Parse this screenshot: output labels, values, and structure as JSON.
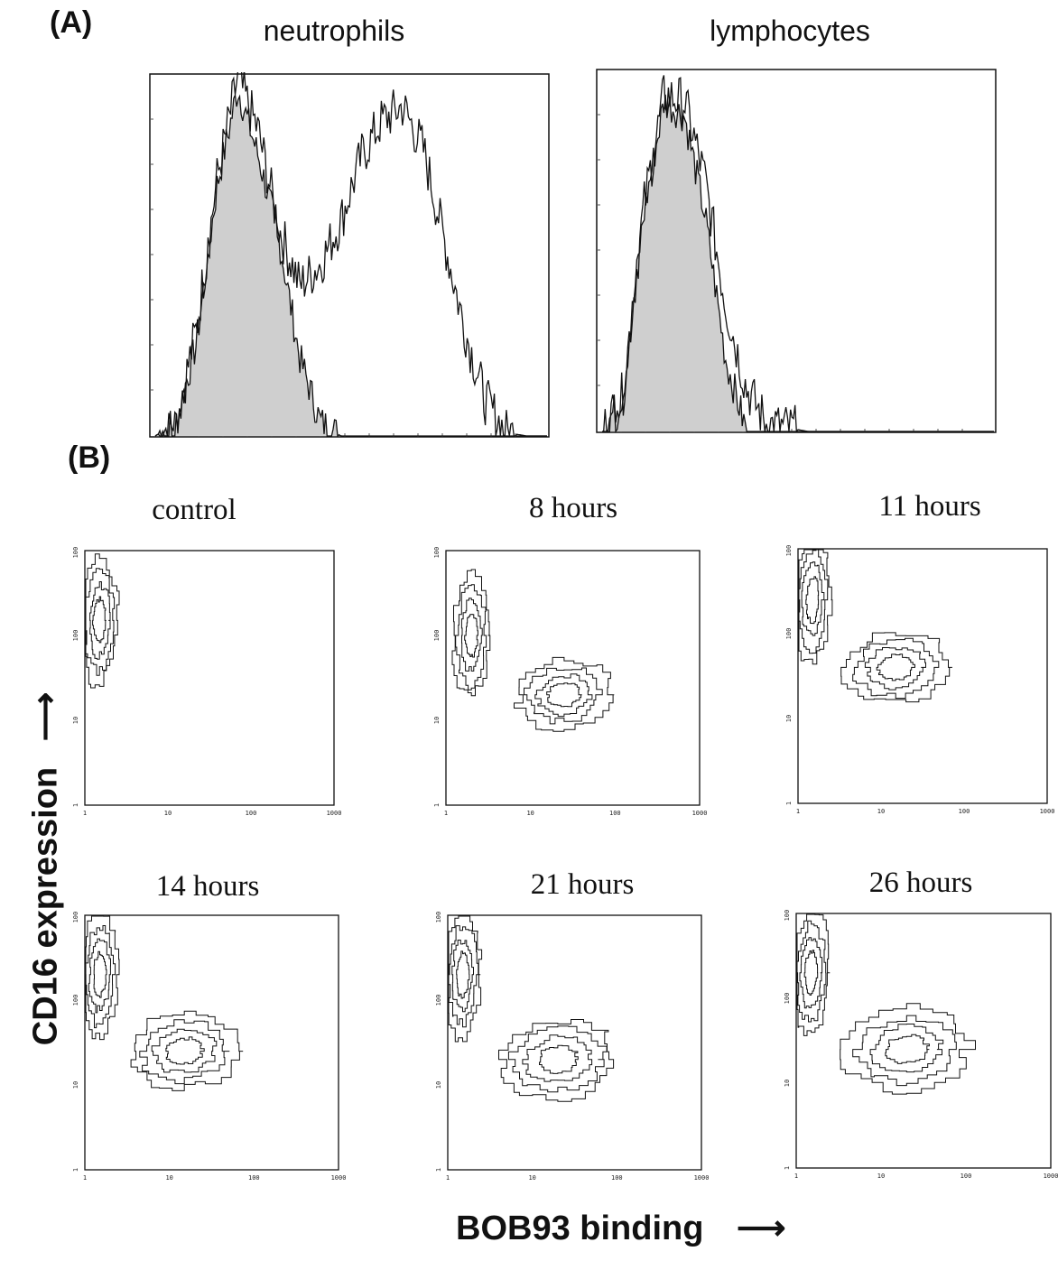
{
  "panel_a": {
    "label": "(A)",
    "neutrophils_title": "neutrophils",
    "lymphocytes_title": "lymphocytes"
  },
  "panel_b": {
    "label": "(B)",
    "y_axis_label": "CD16 expression",
    "x_axis_label": "BOB93 binding",
    "tick_labels": [
      "1",
      "10",
      "100",
      "1000"
    ],
    "plots": [
      {
        "title": "control"
      },
      {
        "title": "8 hours"
      },
      {
        "title": "11 hours"
      },
      {
        "title": "14 hours"
      },
      {
        "title": "21 hours"
      },
      {
        "title": "26 hours"
      }
    ]
  },
  "colors": {
    "fill": "#cfcfcf",
    "line": "#111111"
  },
  "chart_data": [
    {
      "type": "area",
      "title": "neutrophils",
      "xlabel": "",
      "ylabel": "",
      "series": [
        {
          "values": [
            0,
            4,
            26,
            70,
            97,
            78,
            55,
            22,
            4,
            0,
            0,
            0,
            0,
            0,
            0,
            0,
            0,
            0,
            0,
            0
          ]
        },
        {
          "values": [
            0,
            4,
            30,
            72,
            100,
            85,
            58,
            42,
            48,
            60,
            78,
            88,
            92,
            80,
            55,
            30,
            10,
            1,
            0,
            0
          ]
        }
      ]
    },
    {
      "type": "area",
      "title": "lymphocytes",
      "xlabel": "",
      "ylabel": "",
      "series": [
        {
          "values": [
            0,
            10,
            60,
            92,
            88,
            60,
            20,
            0,
            0,
            0,
            0,
            0,
            0,
            0,
            0,
            0,
            0,
            0,
            0,
            0
          ]
        },
        {
          "values": [
            0,
            10,
            62,
            94,
            92,
            70,
            35,
            12,
            2,
            1,
            0,
            0,
            0,
            0,
            0,
            0,
            0,
            0,
            0,
            0
          ]
        }
      ]
    },
    {
      "type": "scatter",
      "title": "control",
      "xlabel": "BOB93 binding",
      "ylabel": "CD16 expression",
      "xlim": [
        1,
        1000
      ],
      "ylim": [
        1,
        1000
      ],
      "log_scale": true,
      "populations": [
        {
          "x": 1.5,
          "y": 150
        }
      ]
    },
    {
      "type": "scatter",
      "title": "8 hours",
      "xlabel": "BOB93 binding",
      "ylabel": "CD16 expression",
      "xlim": [
        1,
        1000
      ],
      "ylim": [
        1,
        1000
      ],
      "log_scale": true,
      "populations": [
        {
          "x": 2,
          "y": 100
        },
        {
          "x": 25,
          "y": 20
        }
      ]
    },
    {
      "type": "scatter",
      "title": "11 hours",
      "xlabel": "BOB93 binding",
      "ylabel": "CD16 expression",
      "xlim": [
        1,
        1000
      ],
      "ylim": [
        1,
        1000
      ],
      "log_scale": true,
      "populations": [
        {
          "x": 1.5,
          "y": 250
        },
        {
          "x": 15,
          "y": 40
        }
      ]
    },
    {
      "type": "scatter",
      "title": "14 hours",
      "xlabel": "BOB93 binding",
      "ylabel": "CD16 expression",
      "xlim": [
        1,
        1000
      ],
      "ylim": [
        1,
        1000
      ],
      "log_scale": true,
      "populations": [
        {
          "x": 1.5,
          "y": 200
        },
        {
          "x": 15,
          "y": 25
        }
      ]
    },
    {
      "type": "scatter",
      "title": "21 hours",
      "xlabel": "BOB93 binding",
      "ylabel": "CD16 expression",
      "xlim": [
        1,
        1000
      ],
      "ylim": [
        1,
        1000
      ],
      "log_scale": true,
      "populations": [
        {
          "x": 1.5,
          "y": 200
        },
        {
          "x": 20,
          "y": 20
        }
      ]
    },
    {
      "type": "scatter",
      "title": "26 hours",
      "xlabel": "BOB93 binding",
      "ylabel": "CD16 expression",
      "xlim": [
        1,
        1000
      ],
      "ylim": [
        1,
        1000
      ],
      "log_scale": true,
      "populations": [
        {
          "x": 1.5,
          "y": 200
        },
        {
          "x": 20,
          "y": 25
        }
      ]
    }
  ]
}
